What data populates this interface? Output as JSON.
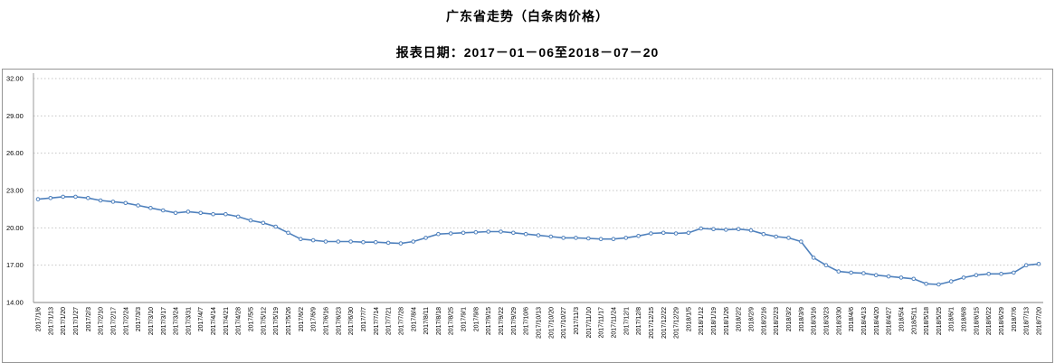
{
  "header": {
    "title": "广东省走势（白条肉价格）",
    "subtitle": "报表日期：2017－01－06至2018－07－20"
  },
  "chart_data": {
    "type": "line",
    "title": "广东省走势（白条肉价格）",
    "subtitle": "报表日期：2017－01－06至2018－07－20",
    "xlabel": "",
    "ylabel": "",
    "ylim": [
      14,
      32
    ],
    "yticks": [
      14,
      17,
      20,
      23,
      26,
      29,
      32
    ],
    "grid": "horizontal-dotted",
    "legend": "none",
    "line_color": "#4f81bd",
    "marker": "circle",
    "x": [
      "2017/1/6",
      "2017/1/13",
      "2017/1/20",
      "2017/1/27",
      "2017/2/3",
      "2017/2/10",
      "2017/2/17",
      "2017/2/24",
      "2017/3/3",
      "2017/3/10",
      "2017/3/17",
      "2017/3/24",
      "2017/3/31",
      "2017/4/7",
      "2017/4/14",
      "2017/4/21",
      "2017/4/28",
      "2017/5/5",
      "2017/5/12",
      "2017/5/19",
      "2017/5/26",
      "2017/6/2",
      "2017/6/9",
      "2017/6/16",
      "2017/6/23",
      "2017/6/30",
      "2017/7/7",
      "2017/7/14",
      "2017/7/21",
      "2017/7/28",
      "2017/8/4",
      "2017/8/11",
      "2017/8/18",
      "2017/8/25",
      "2017/9/1",
      "2017/9/8",
      "2017/9/15",
      "2017/9/22",
      "2017/9/29",
      "2017/10/6",
      "2017/10/13",
      "2017/10/20",
      "2017/10/27",
      "2017/11/3",
      "2017/11/10",
      "2017/11/17",
      "2017/11/24",
      "2017/12/1",
      "2017/12/8",
      "2017/12/15",
      "2017/12/22",
      "2017/12/29",
      "2018/1/5",
      "2018/1/12",
      "2018/1/19",
      "2018/1/26",
      "2018/2/2",
      "2018/2/9",
      "2018/2/16",
      "2018/2/23",
      "2018/3/2",
      "2018/3/9",
      "2018/3/16",
      "2018/3/23",
      "2018/3/30",
      "2018/4/6",
      "2018/4/13",
      "2018/4/20",
      "2018/4/27",
      "2018/5/4",
      "2018/5/11",
      "2018/5/18",
      "2018/5/25",
      "2018/6/1",
      "2018/6/8",
      "2018/6/15",
      "2018/6/22",
      "2018/6/29",
      "2018/7/6",
      "2018/7/13",
      "2018/7/20"
    ],
    "series": [
      {
        "name": "白条肉价格",
        "values": [
          22.3,
          22.4,
          22.5,
          22.5,
          22.4,
          22.2,
          22.1,
          22.0,
          21.8,
          21.6,
          21.4,
          21.2,
          21.3,
          21.2,
          21.1,
          21.1,
          20.9,
          20.6,
          20.4,
          20.1,
          19.6,
          19.1,
          19.0,
          18.9,
          18.9,
          18.9,
          18.85,
          18.85,
          18.8,
          18.75,
          18.9,
          19.2,
          19.5,
          19.55,
          19.6,
          19.65,
          19.7,
          19.7,
          19.6,
          19.5,
          19.4,
          19.3,
          19.2,
          19.2,
          19.15,
          19.1,
          19.1,
          19.2,
          19.35,
          19.55,
          19.6,
          19.55,
          19.6,
          19.95,
          19.9,
          19.85,
          19.9,
          19.8,
          19.5,
          19.3,
          19.2,
          18.9,
          17.6,
          17.0,
          16.5,
          16.4,
          16.35,
          16.2,
          16.1,
          16.0,
          15.9,
          15.5,
          15.45,
          15.7,
          16.0,
          16.2,
          16.3,
          16.3,
          16.4,
          17.0,
          17.1
        ]
      }
    ]
  }
}
